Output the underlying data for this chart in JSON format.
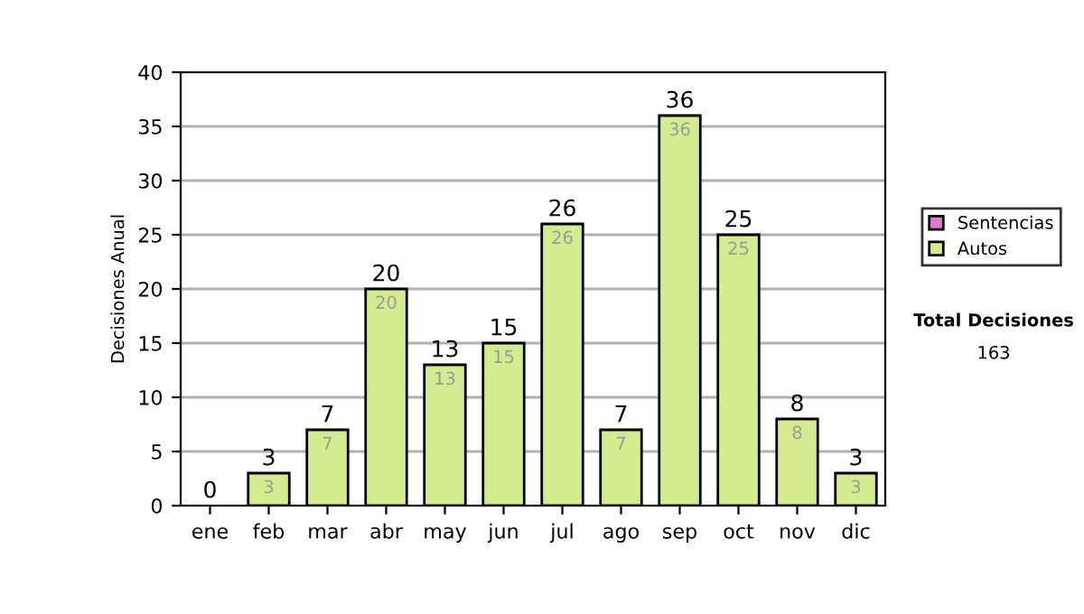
{
  "chart_data": {
    "type": "bar",
    "stacked": true,
    "ylabel": "Decisiones Anual",
    "categories": [
      "ene",
      "feb",
      "mar",
      "abr",
      "may",
      "jun",
      "jul",
      "ago",
      "sep",
      "oct",
      "nov",
      "dic"
    ],
    "series": [
      {
        "name": "Sentencias",
        "color": "#e07ccc",
        "values": [
          0,
          0,
          0,
          0,
          0,
          0,
          0,
          0,
          0,
          0,
          0,
          0
        ]
      },
      {
        "name": "Autos",
        "color": "#d4ec90",
        "values": [
          0,
          3,
          7,
          20,
          13,
          15,
          26,
          7,
          36,
          25,
          8,
          3
        ],
        "value_labels": [
          null,
          "3",
          "7",
          "20",
          "13",
          "15",
          "26",
          "7",
          "36",
          "25",
          "8",
          "3"
        ]
      }
    ],
    "totals": [
      "0",
      "3",
      "7",
      "20",
      "13",
      "15",
      "26",
      "7",
      "36",
      "25",
      "8",
      "3"
    ],
    "ylim": [
      0,
      40
    ],
    "yticks": [
      0,
      5,
      10,
      15,
      20,
      25,
      30,
      35,
      40
    ],
    "grid": "y",
    "legend": "right",
    "annotations": [
      "Total Decisiones",
      "163"
    ]
  }
}
